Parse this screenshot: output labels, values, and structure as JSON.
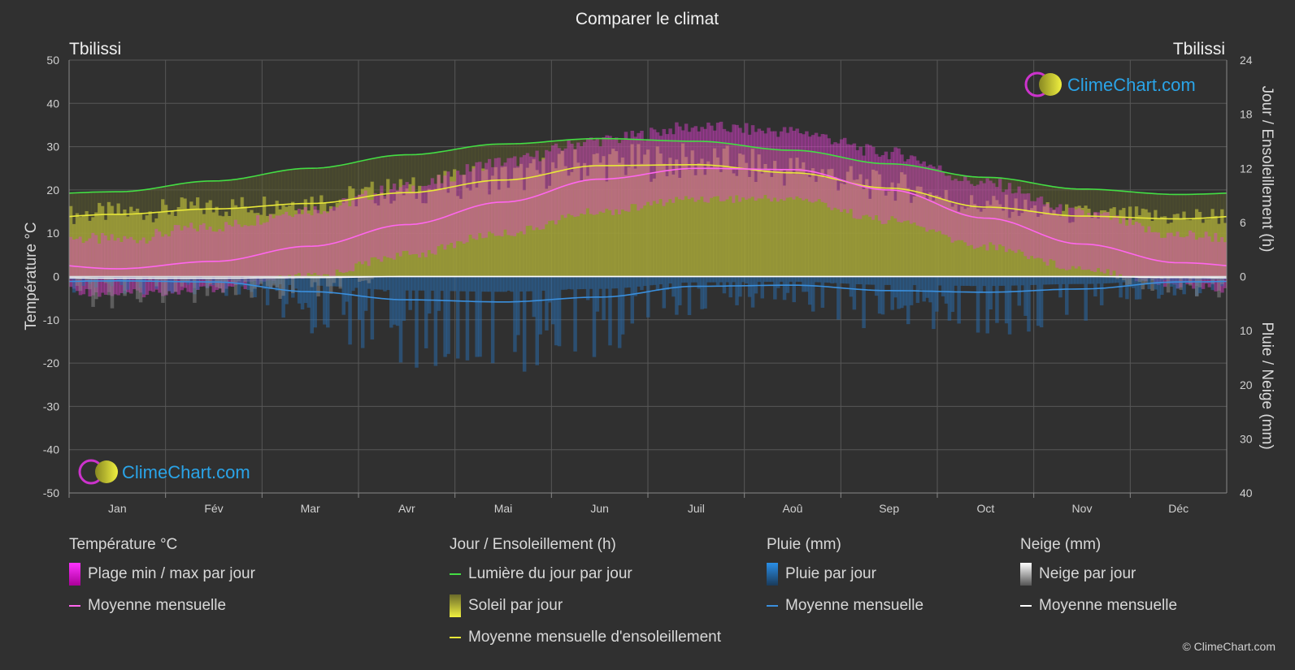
{
  "chart_data": {
    "type": "line",
    "title": "Comparer le climat",
    "location_left": "Tbilissi",
    "location_right": "Tbilissi",
    "categories": [
      "Jan",
      "Fév",
      "Mar",
      "Avr",
      "Mai",
      "Jun",
      "Juil",
      "Aoû",
      "Sep",
      "Oct",
      "Nov",
      "Déc"
    ],
    "axes": {
      "left": {
        "label": "Température °C",
        "range": [
          -50,
          50
        ],
        "ticks": [
          50,
          40,
          30,
          20,
          10,
          0,
          -10,
          -20,
          -30,
          -40,
          -50
        ]
      },
      "right_top": {
        "label": "Jour / Ensoleillement (h)",
        "range": [
          0,
          24
        ],
        "ticks": [
          24,
          18,
          12,
          6,
          0
        ]
      },
      "right_bottom": {
        "label": "Pluie / Neige (mm)",
        "range": [
          0,
          40
        ],
        "ticks": [
          0,
          10,
          20,
          30,
          40
        ]
      }
    },
    "series": [
      {
        "name": "Lumière du jour par jour",
        "unit": "h",
        "color": "#44dd44",
        "values": [
          9.4,
          10.6,
          12.0,
          13.5,
          14.7,
          15.3,
          15.0,
          14.0,
          12.5,
          11.0,
          9.7,
          9.1
        ]
      },
      {
        "name": "Moyenne mensuelle d'ensoleillement",
        "unit": "h",
        "color": "#e8e838",
        "values": [
          6.9,
          7.5,
          8.1,
          9.3,
          10.7,
          12.3,
          12.4,
          11.5,
          9.8,
          7.7,
          6.7,
          6.4
        ]
      },
      {
        "name": "Moyenne mensuelle (température)",
        "unit": "°C",
        "color": "#ff66ee",
        "values": [
          1.8,
          3.5,
          7.0,
          12.0,
          17.2,
          22.5,
          25.0,
          24.7,
          20.0,
          13.5,
          7.5,
          3.2
        ]
      },
      {
        "name": "Moyenne mensuelle (pluie)",
        "unit": "mm",
        "color": "#3a8fdd",
        "values": [
          0.8,
          1.0,
          2.8,
          4.3,
          4.7,
          3.8,
          1.8,
          1.6,
          2.6,
          2.9,
          2.3,
          1.0
        ]
      },
      {
        "name": "Moyenne mensuelle (neige)",
        "unit": "mm",
        "color": "#ffffff",
        "values": [
          0.3,
          0.3,
          0.2,
          0,
          0,
          0,
          0,
          0,
          0,
          0,
          0,
          0.2
        ]
      }
    ],
    "temperature_range": {
      "name": "Plage min / max par jour",
      "min": [
        -3,
        -2,
        1,
        6,
        11,
        16,
        19,
        19,
        14,
        8,
        3,
        -1
      ],
      "max": [
        7,
        10,
        14,
        19,
        25,
        30,
        33,
        32,
        27,
        20,
        13,
        8
      ]
    },
    "grid": true,
    "legend_placement": "bottom"
  },
  "legend": {
    "temperature": {
      "title": "Température °C",
      "range": "Plage min / max par jour",
      "mean": "Moyenne mensuelle"
    },
    "sun": {
      "title": "Jour / Ensoleillement (h)",
      "daylight": "Lumière du jour par jour",
      "sunshine": "Soleil par jour",
      "sunshine_mean": "Moyenne mensuelle d'ensoleillement"
    },
    "rain": {
      "title": "Pluie (mm)",
      "daily": "Pluie par jour",
      "mean": "Moyenne mensuelle"
    },
    "snow": {
      "title": "Neige (mm)",
      "daily": "Neige par jour",
      "mean": "Moyenne mensuelle"
    }
  },
  "watermark": "ClimeChart.com",
  "copyright": "© ClimeChart.com",
  "colors": {
    "background": "#303030",
    "grid": "#5a5a5a",
    "daylight": "#44dd44",
    "sunshine": "#e8e838",
    "temp_mean": "#ff66ee",
    "rain": "#3a8fdd",
    "snow": "#ffffff",
    "brand": "#2aa4e8"
  }
}
